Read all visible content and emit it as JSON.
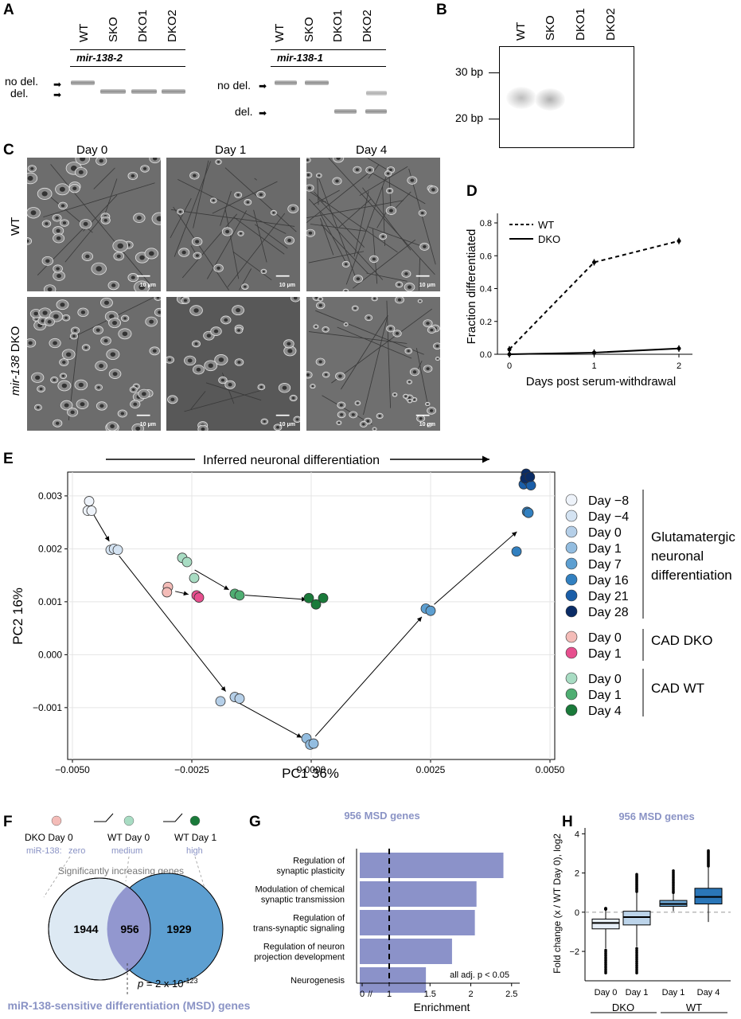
{
  "panelA": {
    "label": "A",
    "left_gene": "mir-138-2",
    "right_gene": "mir-138-1",
    "lanes": [
      "WT",
      "SKO",
      "DKO1",
      "DKO2"
    ],
    "no_del": "no del.",
    "del": "del."
  },
  "panelB": {
    "label": "B",
    "lanes": [
      "WT",
      "SKO",
      "DKO1",
      "DKO2"
    ],
    "marker_30": "30 bp",
    "marker_20": "20 bp"
  },
  "panelC": {
    "label": "C",
    "days": [
      "Day 0",
      "Day 1",
      "Day 4"
    ],
    "row_wt": "WT",
    "row_dko_italic": "mir-138",
    "row_dko_rest": " DKO",
    "scale_bar": "10 μm"
  },
  "panelD": {
    "label": "D",
    "chart_data": {
      "type": "line",
      "x": [
        0,
        1,
        2
      ],
      "xlabel": "Days post serum-withdrawal",
      "ylabel": "Fraction differentiated",
      "ylim": [
        0,
        0.8
      ],
      "yticks": [
        "0.0",
        "0.2",
        "0.4",
        "0.6",
        "0.8"
      ],
      "xticks": [
        "0",
        "1",
        "2"
      ],
      "series": [
        {
          "name": "WT",
          "style": "dashed",
          "values": [
            0.03,
            0.56,
            0.69
          ]
        },
        {
          "name": "DKO",
          "style": "solid",
          "values": [
            0.0,
            0.01,
            0.035
          ]
        }
      ]
    }
  },
  "panelE": {
    "label": "E",
    "arrow_title": "Inferred neuronal differentiation",
    "chart_data": {
      "type": "scatter",
      "xlabel": "PC1 36%",
      "ylabel": "PC2 16%",
      "xlim": [
        -0.0051,
        0.0051
      ],
      "ylim": [
        -0.00198,
        0.00345
      ],
      "xticks": [
        "-0.0050",
        "-0.0025",
        "0.0000",
        "0.0025",
        "0.0050"
      ],
      "yticks": [
        "0.003",
        "0.002",
        "0.001",
        "0.000",
        "-0.001"
      ],
      "series": [
        {
          "name": "Day −8",
          "color": "#eef3fa",
          "points": [
            [
              -0.00465,
              0.0029
            ],
            [
              -0.00468,
              0.00272
            ],
            [
              -0.0046,
              0.00272
            ]
          ]
        },
        {
          "name": "Day −4",
          "color": "#d4e3f2",
          "points": [
            [
              -0.0042,
              0.00198
            ],
            [
              -0.00413,
              0.002
            ],
            [
              -0.00405,
              0.00198
            ]
          ]
        },
        {
          "name": "Day 0",
          "color": "#b5cfe8",
          "points": [
            [
              -0.0019,
              -0.00088
            ],
            [
              -0.0016,
              -0.0008
            ],
            [
              -0.0015,
              -0.00083
            ]
          ]
        },
        {
          "name": "Day 1",
          "color": "#93bde0",
          "points": [
            [
              -0.0001,
              -0.00158
            ],
            [
              -2e-05,
              -0.0017
            ],
            [
              5e-05,
              -0.00168
            ]
          ]
        },
        {
          "name": "Day 7",
          "color": "#5d9fd1",
          "points": [
            [
              0.0024,
              0.00087
            ],
            [
              0.0025,
              0.00083
            ]
          ]
        },
        {
          "name": "Day 16",
          "color": "#3280c0",
          "points": [
            [
              0.0043,
              0.00195
            ],
            [
              0.00452,
              0.0027
            ],
            [
              0.00455,
              0.00268
            ]
          ]
        },
        {
          "name": "Day 21",
          "color": "#1a5ea8",
          "points": [
            [
              0.00445,
              0.00322
            ],
            [
              0.00455,
              0.00328
            ],
            [
              0.0046,
              0.0032
            ]
          ]
        },
        {
          "name": "Day 28",
          "color": "#0a2c66",
          "points": [
            [
              0.0045,
              0.00342
            ],
            [
              0.00448,
              0.00333
            ],
            [
              0.00458,
              0.00336
            ]
          ]
        },
        {
          "name": "Day 0",
          "color": "#f4bcb8",
          "points": [
            [
              -0.003,
              0.00128
            ],
            [
              -0.00302,
              0.00118
            ]
          ]
        },
        {
          "name": "Day 1",
          "color": "#e74f8e",
          "points": [
            [
              -0.0024,
              0.00112
            ],
            [
              -0.00235,
              0.00108
            ]
          ]
        },
        {
          "name": "Day 0",
          "color": "#a8dcc3",
          "points": [
            [
              -0.0027,
              0.00183
            ],
            [
              -0.0026,
              0.00175
            ],
            [
              -0.00245,
              0.00145
            ]
          ]
        },
        {
          "name": "Day 1",
          "color": "#4fae72",
          "points": [
            [
              -0.0016,
              0.00115
            ],
            [
              -0.0015,
              0.00112
            ]
          ]
        },
        {
          "name": "Day 4",
          "color": "#1a7a3a",
          "points": [
            [
              -5e-05,
              0.00107
            ],
            [
              0.0001,
              0.00095
            ],
            [
              0.00025,
              0.00107
            ]
          ]
        }
      ],
      "groups": [
        "Glutamatergic neuronal differentiation",
        "CAD DKO",
        "CAD WT"
      ]
    }
  },
  "panelF": {
    "label": "F",
    "states": [
      {
        "name": "DKO Day 0",
        "level": "zero"
      },
      {
        "name": "WT Day 0",
        "level": "medium"
      },
      {
        "name": "WT Day 1",
        "level": "high"
      }
    ],
    "mir_label": "miR-138:",
    "increasing": "Significantly increasing genes",
    "venn_left": "1944",
    "venn_mid": "956",
    "venn_right": "1929",
    "pvalue_p": "p",
    "pvalue_eq": " = 2 x 10",
    "pvalue_exp": "-123",
    "footer": "miR-138-sensitive differentiation (MSD) genes"
  },
  "panelG": {
    "label": "G",
    "chart_data": {
      "type": "bar",
      "title": "956 MSD genes",
      "categories": [
        "Regulation of synaptic plasticity",
        "Modulation of chemical synaptic transmission",
        "Regulation of trans-synaptic signaling",
        "Regulation of neuron projection development",
        "Neurogenesis"
      ],
      "values": [
        2.4,
        2.07,
        2.05,
        1.77,
        1.45
      ],
      "xlabel": "Enrichment",
      "xticks": [
        "0",
        "1",
        "1.5",
        "2",
        "2.5"
      ],
      "xlim": [
        0.6,
        2.6
      ],
      "reference": 1,
      "annotation": "all adj. p < 0.05"
    },
    "label_lines": [
      [
        "Regulation of",
        "synaptic plasticity"
      ],
      [
        "Modulation of chemical",
        "synaptic transmission"
      ],
      [
        "Regulation of",
        "trans-synaptic signaling"
      ],
      [
        "Regulation of neuron",
        "projection development"
      ],
      [
        "Neurogenesis"
      ]
    ]
  },
  "panelH": {
    "label": "H",
    "chart_data": {
      "type": "box",
      "title": "956 MSD genes",
      "ylabel": "Fold change (x / WT Day 0), log2",
      "ylim": [
        -3.5,
        4.3
      ],
      "yticks": [
        "4",
        "2",
        "0",
        "−2"
      ],
      "categories": [
        "Day 0",
        "Day 1",
        "Day 1",
        "Day 4"
      ],
      "groups": [
        {
          "name": "DKO"
        },
        {
          "name": "WT"
        }
      ],
      "boxes": [
        {
          "q1": -0.85,
          "median": -0.55,
          "q3": -0.35,
          "wlo": -1.85,
          "whi": 0.15,
          "olo": -3.1,
          "ohi": 0.2,
          "color": "#e6eef7"
        },
        {
          "q1": -0.65,
          "median": -0.25,
          "q3": 0.05,
          "wlo": -1.75,
          "whi": 1.05,
          "olo": -3.1,
          "ohi": 2.0,
          "color": "#bcd4ea"
        },
        {
          "q1": 0.3,
          "median": 0.42,
          "q3": 0.6,
          "wlo": 0.05,
          "whi": 1.0,
          "olo": 0.0,
          "ohi": 2.2,
          "color": "#6fa8d6"
        },
        {
          "q1": 0.42,
          "median": 0.78,
          "q3": 1.22,
          "wlo": -0.5,
          "whi": 2.35,
          "olo": -0.5,
          "ohi": 3.2,
          "color": "#2a76b8"
        }
      ]
    }
  }
}
